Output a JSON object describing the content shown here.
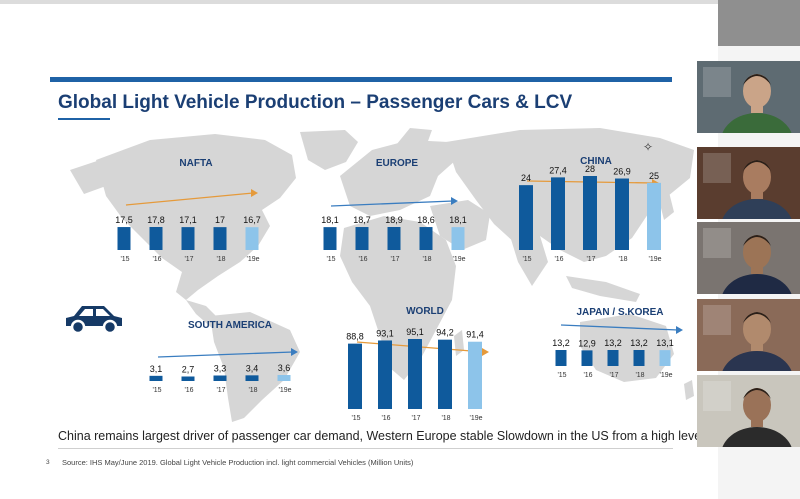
{
  "slide": {
    "title": "Global Light Vehicle Production – Passenger Cars & LCV",
    "caption": "China remains largest driver of passenger car demand, Western Europe stable Slowdown in the US from a high level",
    "footnote_number": "3",
    "footnote": "Source: IHS May/June 2019. Global Light Vehicle Production incl. light commercial Vehicles (Million Units)",
    "icon": "car-icon"
  },
  "colors": {
    "accent": "#1f62a6",
    "title": "#1b3f74",
    "bar_dark": "#0f5a9c",
    "bar_estimate": "#8dc4ea",
    "trend_orange": "#e59a3b",
    "trend_blue": "#3a7dc0",
    "map": "#d6d6d6"
  },
  "chart_data": [
    {
      "type": "bar",
      "title": "NAFTA",
      "categories": [
        "'15",
        "'16",
        "'17",
        "'18",
        "'19e"
      ],
      "values": [
        17.5,
        17.8,
        17.1,
        17,
        16.7
      ],
      "labels": [
        "17,5",
        "17,8",
        "17,1",
        "17",
        "16,7"
      ],
      "trend": "down"
    },
    {
      "type": "bar",
      "title": "EUROPE",
      "categories": [
        "'15",
        "'16",
        "'17",
        "'18",
        "'19e"
      ],
      "values": [
        18.1,
        18.7,
        18.9,
        18.6,
        18.1
      ],
      "labels": [
        "18,1",
        "18,7",
        "18,9",
        "18,6",
        "18,1"
      ],
      "trend": "up"
    },
    {
      "type": "bar",
      "title": "CHINA",
      "categories": [
        "'15",
        "'16",
        "'17",
        "'18",
        "'19e"
      ],
      "values": [
        24,
        27.4,
        28,
        26.9,
        25
      ],
      "labels": [
        "24",
        "27,4",
        "28",
        "26,9",
        "25"
      ],
      "trend": "down"
    },
    {
      "type": "bar",
      "title": "SOUTH AMERICA",
      "categories": [
        "'15",
        "'16",
        "'17",
        "'18",
        "'19e"
      ],
      "values": [
        3.1,
        2.7,
        3.3,
        3.4,
        3.6
      ],
      "labels": [
        "3,1",
        "2,7",
        "3,3",
        "3,4",
        "3,6"
      ],
      "trend": "up"
    },
    {
      "type": "bar",
      "title": "WORLD",
      "categories": [
        "'15",
        "'16",
        "'17",
        "'18",
        "'19e"
      ],
      "values": [
        88.8,
        93.1,
        95.1,
        94.2,
        91.4
      ],
      "labels": [
        "88,8",
        "93,1",
        "95,1",
        "94,2",
        "91,4"
      ],
      "trend": "down"
    },
    {
      "type": "bar",
      "title": "JAPAN / S.KOREA",
      "categories": [
        "'15",
        "'16",
        "'17",
        "'18",
        "'19e"
      ],
      "values": [
        13.2,
        12.9,
        13.2,
        13.2,
        13.1
      ],
      "labels": [
        "13,2",
        "12,9",
        "13,2",
        "13,2",
        "13,1"
      ],
      "trend": "up"
    }
  ],
  "participants": [
    {
      "name": "participant-1",
      "skin": "#caa488",
      "shirt": "#3a6b3a",
      "bg": "#5e6b72"
    },
    {
      "name": "participant-2",
      "skin": "#a97c60",
      "shirt": "#2f3f58",
      "bg": "#5a3d2f"
    },
    {
      "name": "participant-3",
      "skin": "#9c7456",
      "shirt": "#1f2a44",
      "bg": "#7a7470"
    },
    {
      "name": "participant-4",
      "skin": "#b18a6d",
      "shirt": "#2a3550",
      "bg": "#8a6a58"
    },
    {
      "name": "participant-5",
      "skin": "#9a7258",
      "shirt": "#2b2b2b",
      "bg": "#c9c6bd"
    }
  ]
}
